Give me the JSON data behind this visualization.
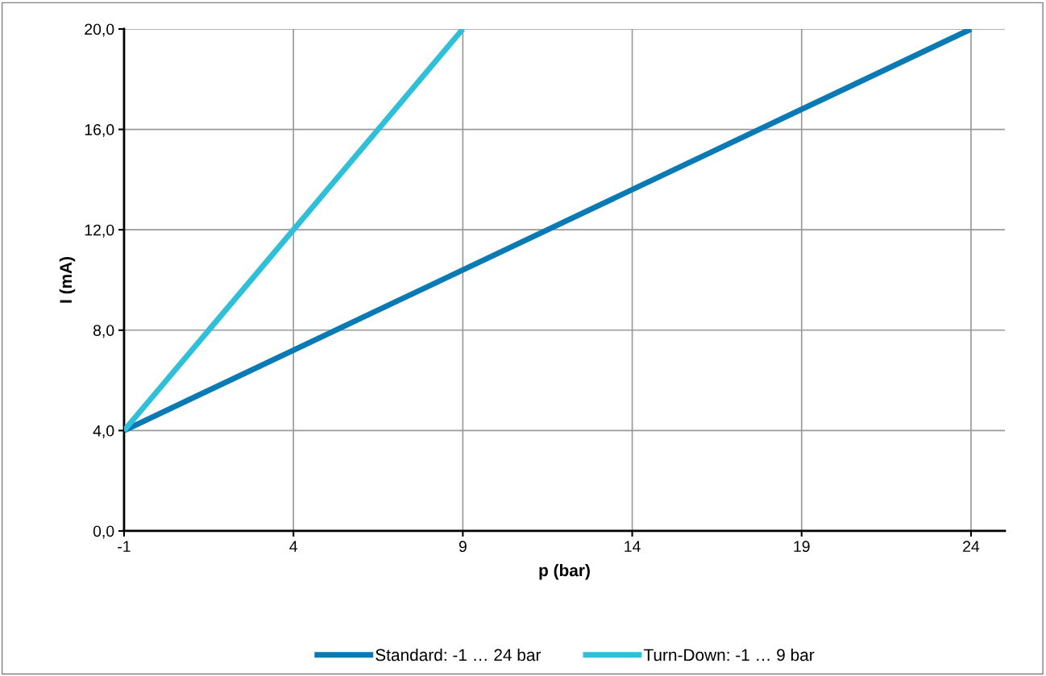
{
  "chart_data": {
    "type": "line",
    "xlabel": "p (bar)",
    "ylabel": "I (mA)",
    "xlim": [
      -1,
      25
    ],
    "xticks": [
      -1,
      4,
      9,
      14,
      19,
      24
    ],
    "ylim": [
      0,
      20
    ],
    "yticks": [
      {
        "value": 0,
        "label": "0,0"
      },
      {
        "value": 4,
        "label": "4,0"
      },
      {
        "value": 8,
        "label": "8,0"
      },
      {
        "value": 12,
        "label": "12,0"
      },
      {
        "value": 16,
        "label": "16,0"
      },
      {
        "value": 20,
        "label": "20,0"
      }
    ],
    "series": [
      {
        "name": "Standard: -1 … 24 bar",
        "color": "#0a7ab5",
        "x": [
          -1,
          24
        ],
        "values": [
          4,
          20
        ]
      },
      {
        "name": "Turn-Down: -1 … 9 bar",
        "color": "#2fbfd8",
        "x": [
          -1,
          9
        ],
        "values": [
          4,
          20
        ]
      }
    ],
    "grid": true,
    "legend": "bottom",
    "marker": "none",
    "line_style": "solid"
  }
}
